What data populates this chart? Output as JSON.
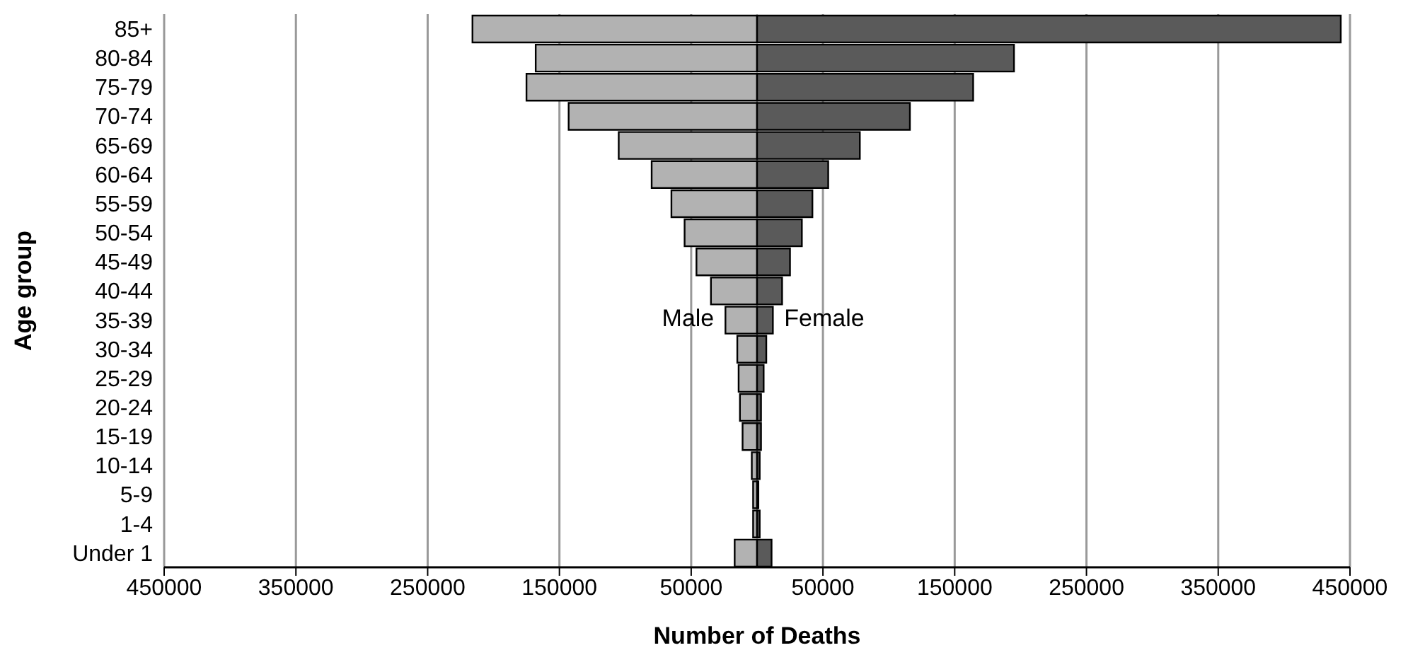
{
  "chart_data": {
    "type": "bar",
    "orientation": "horizontal",
    "stacked": true,
    "xlabel": "Number of Deaths",
    "ylabel": "Age group",
    "categories": [
      "85+",
      "80-84",
      "75-79",
      "70-74",
      "65-69",
      "60-64",
      "55-59",
      "50-54",
      "45-49",
      "40-44",
      "35-39",
      "30-34",
      "25-29",
      "20-24",
      "15-19",
      "10-14",
      "5-9",
      "1-4",
      "Under 1"
    ],
    "series": [
      {
        "name": "Male",
        "color": "#b2b2b2",
        "values": [
          -216000,
          -168000,
          -175000,
          -143000,
          -105000,
          -80000,
          -65000,
          -55000,
          -46000,
          -35000,
          -24000,
          -15000,
          -14000,
          -13000,
          -11000,
          -4000,
          -3000,
          -3000,
          -17000
        ]
      },
      {
        "name": "Female",
        "color": "#5a5a5a",
        "values": [
          443000,
          195000,
          164000,
          116000,
          78000,
          54000,
          42000,
          34000,
          25000,
          19000,
          12000,
          7000,
          5000,
          3000,
          3000,
          2000,
          1000,
          2000,
          11000
        ]
      }
    ],
    "xlim": [
      -450000,
      450000
    ],
    "xticks": [
      {
        "value": -450000,
        "label": "450000"
      },
      {
        "value": -350000,
        "label": "350000"
      },
      {
        "value": -250000,
        "label": "250000"
      },
      {
        "value": -150000,
        "label": "150000"
      },
      {
        "value": -50000,
        "label": "50000"
      },
      50000,
      150000,
      250000,
      350000,
      450000
    ],
    "grid": "x",
    "legend": false
  }
}
